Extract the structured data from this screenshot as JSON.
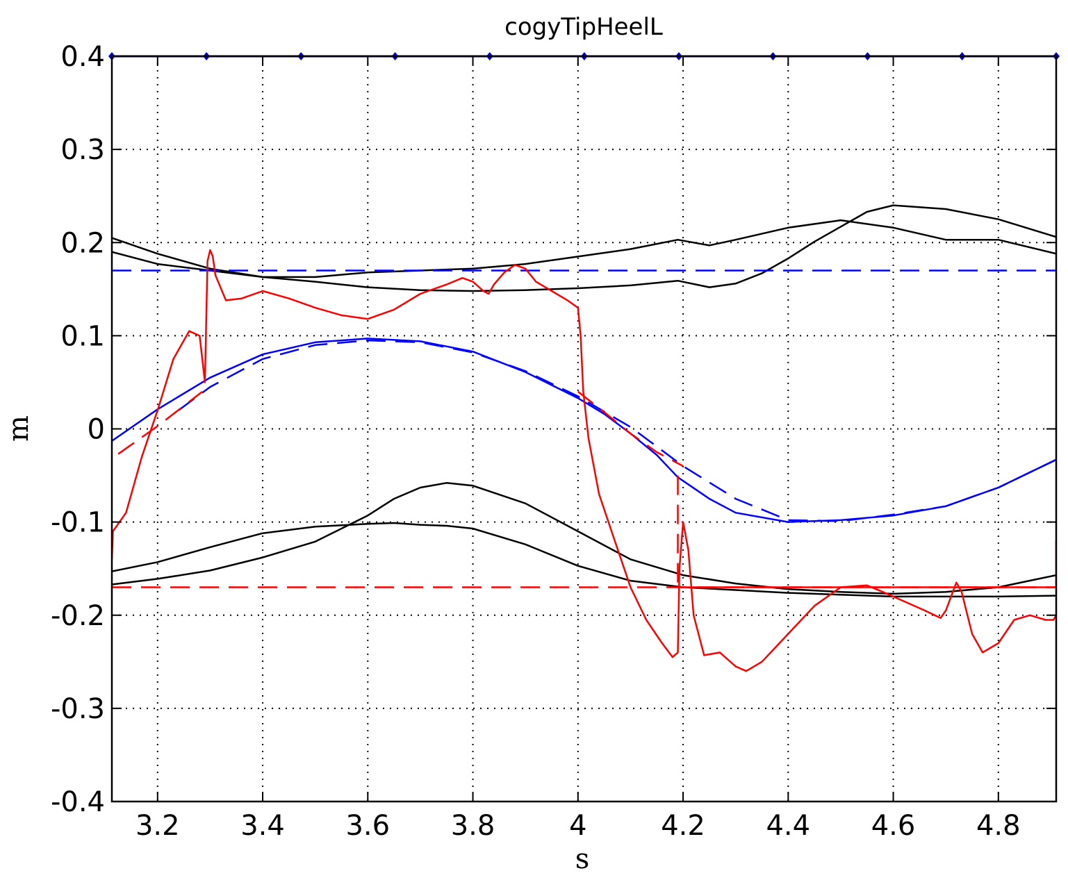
{
  "chart_data": {
    "type": "line",
    "title": "cogyTipHeelL",
    "xlabel": "s",
    "ylabel": "m",
    "xlim": [
      3.113,
      4.91
    ],
    "ylim": [
      -0.4,
      0.4
    ],
    "xticks": [
      "3.2",
      "3.4",
      "3.6",
      "3.8",
      "4",
      "4.2",
      "4.4",
      "4.6",
      "4.8"
    ],
    "yticks": [
      "0.4",
      "0.3",
      "0.2",
      "0.1",
      "0",
      "-0.1",
      "-0.2",
      "-0.3",
      "-0.4"
    ],
    "grid": true,
    "colors": {
      "blue": "#0000ff",
      "red": "#ff0000",
      "black": "#000000",
      "marker": "#0000cc"
    },
    "markers": {
      "y": 0.4,
      "x": [
        3.113,
        3.293,
        3.473,
        3.652,
        3.832,
        4.012,
        4.192,
        4.371,
        4.551,
        4.731,
        4.91
      ]
    },
    "series": [
      {
        "color": "black",
        "style": "solid",
        "x": [
          3.113,
          3.2,
          3.3,
          3.4,
          3.5,
          3.6,
          3.7,
          3.8,
          3.9,
          4.0,
          4.1,
          4.19,
          4.25,
          4.3,
          4.4,
          4.5,
          4.6,
          4.7,
          4.8,
          4.91
        ],
        "y": [
          0.205,
          0.188,
          0.172,
          0.163,
          0.163,
          0.168,
          0.17,
          0.172,
          0.177,
          0.185,
          0.193,
          0.203,
          0.197,
          0.203,
          0.216,
          0.224,
          0.216,
          0.203,
          0.203,
          0.188
        ]
      },
      {
        "color": "black",
        "style": "solid",
        "x": [
          3.113,
          3.2,
          3.3,
          3.4,
          3.5,
          3.6,
          3.7,
          3.8,
          3.9,
          4.0,
          4.1,
          4.19,
          4.25,
          4.3,
          4.35,
          4.4,
          4.45,
          4.5,
          4.55,
          4.6,
          4.7,
          4.8,
          4.91
        ],
        "y": [
          0.19,
          0.177,
          0.17,
          0.163,
          0.158,
          0.152,
          0.149,
          0.148,
          0.149,
          0.151,
          0.154,
          0.159,
          0.152,
          0.156,
          0.167,
          0.183,
          0.201,
          0.217,
          0.233,
          0.24,
          0.236,
          0.225,
          0.206
        ]
      },
      {
        "color": "black",
        "style": "solid",
        "x": [
          3.113,
          3.2,
          3.3,
          3.4,
          3.5,
          3.6,
          3.65,
          3.7,
          3.75,
          3.8,
          3.9,
          4.0,
          4.1,
          4.2,
          4.3,
          4.4,
          4.5,
          4.6,
          4.7,
          4.8,
          4.91
        ],
        "y": [
          -0.153,
          -0.143,
          -0.127,
          -0.112,
          -0.105,
          -0.102,
          -0.101,
          -0.103,
          -0.104,
          -0.107,
          -0.124,
          -0.147,
          -0.163,
          -0.17,
          -0.173,
          -0.176,
          -0.178,
          -0.18,
          -0.18,
          -0.18,
          -0.179
        ]
      },
      {
        "color": "black",
        "style": "solid",
        "x": [
          3.113,
          3.2,
          3.3,
          3.4,
          3.5,
          3.6,
          3.65,
          3.7,
          3.75,
          3.8,
          3.9,
          4.0,
          4.1,
          4.2,
          4.3,
          4.4,
          4.5,
          4.6,
          4.7,
          4.8,
          4.91
        ],
        "y": [
          -0.167,
          -0.161,
          -0.152,
          -0.138,
          -0.121,
          -0.093,
          -0.075,
          -0.063,
          -0.058,
          -0.061,
          -0.08,
          -0.11,
          -0.14,
          -0.157,
          -0.166,
          -0.172,
          -0.175,
          -0.177,
          -0.175,
          -0.17,
          -0.157
        ]
      },
      {
        "color": "blue",
        "style": "dashed",
        "x": [
          3.113,
          4.91
        ],
        "y": [
          0.17,
          0.17
        ]
      },
      {
        "color": "red",
        "style": "dashed",
        "x": [
          3.113,
          4.91
        ],
        "y": [
          -0.17,
          -0.17
        ]
      },
      {
        "color": "blue",
        "style": "solid",
        "x": [
          3.113,
          3.2,
          3.3,
          3.4,
          3.5,
          3.6,
          3.7,
          3.8,
          3.9,
          4.0,
          4.05,
          4.1,
          4.15,
          4.19
        ],
        "y": [
          -0.013,
          0.021,
          0.055,
          0.08,
          0.093,
          0.097,
          0.094,
          0.083,
          0.061,
          0.033,
          0.016,
          -0.005,
          -0.028,
          -0.052
        ]
      },
      {
        "color": "blue",
        "style": "dashed",
        "x": [
          3.24,
          3.3,
          3.4,
          3.5,
          3.6,
          3.7,
          3.8,
          3.9,
          4.0,
          4.1,
          4.2,
          4.3,
          4.4,
          4.5,
          4.6,
          4.7,
          4.8,
          4.91
        ],
        "y": [
          0.02,
          0.045,
          0.075,
          0.09,
          0.095,
          0.093,
          0.082,
          0.062,
          0.035,
          0.002,
          -0.04,
          -0.075,
          -0.098,
          -0.099,
          -0.092,
          -0.083,
          -0.063,
          -0.033
        ]
      },
      {
        "color": "blue",
        "style": "solid",
        "x": [
          4.19,
          4.25,
          4.3,
          4.4,
          4.5,
          4.6,
          4.7,
          4.8,
          4.91
        ],
        "y": [
          -0.052,
          -0.075,
          -0.09,
          -0.1,
          -0.098,
          -0.093,
          -0.083,
          -0.063,
          -0.033
        ]
      },
      {
        "color": "red",
        "style": "dashed",
        "x": [
          3.125,
          3.2,
          3.285
        ],
        "y": [
          -0.027,
          0.003,
          0.04
        ]
      },
      {
        "color": "red",
        "style": "dashed",
        "x": [
          4.0,
          4.05,
          4.1,
          4.15,
          4.2
        ],
        "y": [
          0.04,
          0.018,
          -0.005,
          -0.025,
          -0.04
        ]
      },
      {
        "color": "red",
        "style": "dashed",
        "x": [
          4.19,
          4.19
        ],
        "y": [
          -0.05,
          -0.17
        ]
      },
      {
        "color": "red",
        "style": "solid",
        "x": [
          3.113,
          3.115,
          3.14,
          3.17,
          3.2,
          3.23,
          3.26,
          3.28,
          3.29,
          3.295,
          3.3,
          3.305,
          3.31,
          3.33,
          3.36,
          3.4,
          3.45,
          3.5,
          3.55,
          3.6,
          3.65,
          3.7,
          3.75,
          3.78,
          3.8,
          3.82,
          3.83,
          3.84,
          3.86,
          3.88,
          3.9,
          3.92,
          3.95,
          3.98,
          4.0,
          4.005,
          4.01,
          4.02,
          4.04,
          4.07,
          4.1,
          4.13,
          4.16,
          4.18,
          4.19,
          4.193,
          4.2,
          4.21,
          4.22,
          4.24,
          4.27,
          4.3,
          4.32,
          4.35,
          4.4,
          4.45,
          4.5,
          4.55,
          4.58,
          4.62,
          4.66,
          4.69,
          4.7,
          4.71,
          4.72,
          4.73,
          4.75,
          4.77,
          4.8,
          4.83,
          4.86,
          4.89,
          4.905,
          4.91
        ],
        "y": [
          -0.14,
          -0.11,
          -0.09,
          -0.03,
          0.02,
          0.075,
          0.105,
          0.1,
          0.05,
          0.18,
          0.192,
          0.185,
          0.165,
          0.138,
          0.14,
          0.148,
          0.14,
          0.13,
          0.122,
          0.118,
          0.128,
          0.145,
          0.155,
          0.162,
          0.158,
          0.148,
          0.145,
          0.155,
          0.168,
          0.176,
          0.172,
          0.158,
          0.148,
          0.138,
          0.13,
          0.1,
          0.04,
          -0.01,
          -0.07,
          -0.12,
          -0.17,
          -0.205,
          -0.23,
          -0.245,
          -0.24,
          -0.15,
          -0.1,
          -0.13,
          -0.2,
          -0.243,
          -0.24,
          -0.255,
          -0.26,
          -0.25,
          -0.22,
          -0.19,
          -0.17,
          -0.168,
          -0.175,
          -0.185,
          -0.195,
          -0.203,
          -0.195,
          -0.18,
          -0.165,
          -0.175,
          -0.22,
          -0.24,
          -0.23,
          -0.205,
          -0.2,
          -0.205,
          -0.205,
          -0.2
        ]
      },
      {
        "color": "red",
        "style": "solid",
        "x": [
          4.19,
          4.91,
          4.91
        ],
        "y": [
          -0.17,
          -0.17,
          -0.12
        ]
      }
    ]
  }
}
